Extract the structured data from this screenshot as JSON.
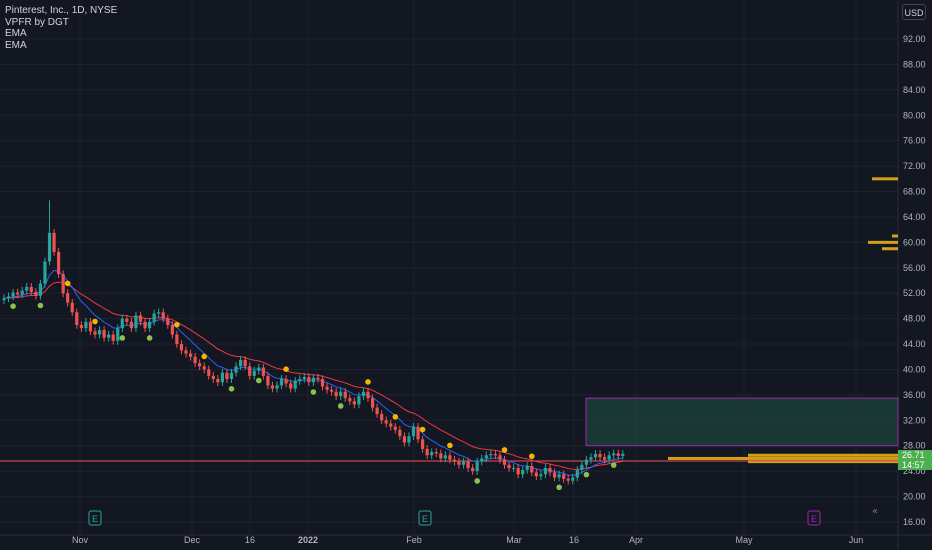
{
  "legend": {
    "symbol": "Pinterest, Inc., 1D, NYSE",
    "indicator1": "VPFR by DGT ⁣⁣",
    "indicator2": "EMA",
    "indicator3": "EMA"
  },
  "currency": "USD",
  "last_price": "26.71",
  "countdown": "14:57",
  "colors": {
    "background": "#131722",
    "up": "#26a69a",
    "down": "#ef5350",
    "ema_fast": "#2962ff",
    "ema_slow": "#f23645",
    "volume_profile": "#d4a017",
    "box_border": "#9c27b0",
    "box_fill": "#1e4d40",
    "dot_up": "#8bc34a",
    "dot_down": "#f4b400"
  },
  "chart_data": {
    "type": "candlestick",
    "y_axis": {
      "range": [
        16,
        92
      ],
      "ticks": [
        "16.00",
        "20.00",
        "24.00",
        "28.00",
        "32.00",
        "36.00",
        "40.00",
        "44.00",
        "48.00",
        "52.00",
        "56.00",
        "60.00",
        "64.00",
        "68.00",
        "72.00",
        "76.00",
        "80.00",
        "84.00",
        "88.00",
        "92.00"
      ]
    },
    "x_axis": {
      "labels": [
        "Nov",
        "Dec",
        "16",
        "2022",
        "Feb",
        "Mar",
        "16",
        "Apr",
        "May",
        "Jun"
      ]
    },
    "close_series": [
      51.2,
      51.5,
      52.1,
      51.8,
      52.4,
      53.0,
      52.2,
      51.6,
      53.5,
      57.0,
      61.5,
      58.5,
      55.0,
      52.0,
      50.5,
      49.0,
      47.0,
      46.5,
      47.5,
      46.0,
      45.5,
      46.2,
      45.0,
      45.5,
      44.5,
      46.5,
      48.0,
      47.5,
      46.5,
      48.5,
      47.5,
      46.5,
      47.5,
      48.8,
      49.0,
      48.0,
      47.0,
      45.5,
      44.0,
      43.0,
      42.5,
      42.0,
      41.0,
      40.5,
      40.0,
      39.0,
      38.5,
      38.0,
      39.5,
      38.5,
      39.5,
      40.5,
      41.5,
      40.5,
      39.0,
      39.8,
      40.3,
      39.0,
      37.5,
      37.0,
      37.5,
      38.5,
      37.8,
      37.0,
      38.2,
      38.5,
      38.8,
      38.0,
      38.7,
      38.5,
      37.3,
      36.8,
      36.5,
      35.8,
      36.5,
      35.5,
      35.0,
      34.5,
      35.8,
      36.5,
      35.5,
      34.0,
      33.0,
      32.0,
      31.5,
      31.0,
      30.5,
      29.5,
      28.5,
      29.5,
      31.0,
      29.0,
      27.5,
      26.5,
      27.0,
      26.8,
      26.0,
      26.5,
      25.8,
      25.5,
      25.0,
      25.5,
      24.5,
      24.0,
      25.5,
      26.0,
      26.5,
      26.7,
      26.5,
      25.8,
      25.0,
      24.5,
      24.5,
      23.5,
      24.2,
      24.8,
      23.8,
      23.2,
      23.5,
      24.5,
      23.8,
      23.0,
      23.5,
      22.8,
      22.5,
      23.0,
      24.2,
      25.0,
      25.8,
      26.2,
      26.7,
      26.2,
      25.8,
      26.5,
      26.8,
      26.4,
      26.71
    ],
    "ema_fast_label": "EMA",
    "ema_slow_label": "EMA",
    "rectangle": {
      "y_top": 35.5,
      "y_bottom": 28.0
    },
    "horizontal_line": 25.6,
    "volume_profile_levels": [
      70.0,
      61.0,
      60.0,
      59.0,
      26.5,
      26.0,
      25.5
    ],
    "earnings_markers": [
      "E",
      "E",
      "E"
    ]
  }
}
